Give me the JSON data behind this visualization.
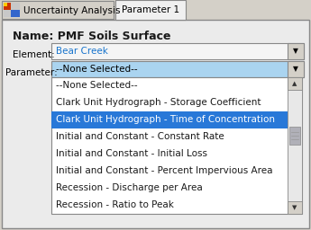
{
  "tab1_label": "Uncertainty Analysis",
  "tab2_label": "Parameter 1",
  "name_label": "Name:",
  "name_value": "PMF Soils Surface",
  "element_label": "Element:",
  "element_value": "Bear Creek",
  "parameter_label": "Parameter:",
  "parameter_value": "--None Selected--",
  "dropdown_items": [
    "--None Selected--",
    "Clark Unit Hydrograph - Storage Coefficient",
    "Clark Unit Hydrograph - Time of Concentration",
    "Initial and Constant - Constant Rate",
    "Initial and Constant - Initial Loss",
    "Initial and Constant - Percent Impervious Area",
    "Recession - Discharge per Area",
    "Recession - Ratio to Peak"
  ],
  "selected_index": 2,
  "bg_color": "#d4d0c8",
  "panel_bg": "#ebebeb",
  "tab_active_bg": "#f0f0f0",
  "tab_inactive_bg": "#d4d0c8",
  "dropdown_bg": "#ffffff",
  "dropdown_header_bg": "#aad4f0",
  "selected_item_bg": "#2878d8",
  "selected_item_fg": "#ffffff",
  "item_fg": "#1a1a1a",
  "element_fg": "#1874cd",
  "scrollbar_bg": "#d0d0d0",
  "scrollbar_track": "#e8e8e8",
  "scrollbar_slider": "#b0b0b8",
  "border_color": "#888888",
  "font_size": 7.5,
  "name_font_size": 9.0,
  "tab_font_size": 7.5
}
